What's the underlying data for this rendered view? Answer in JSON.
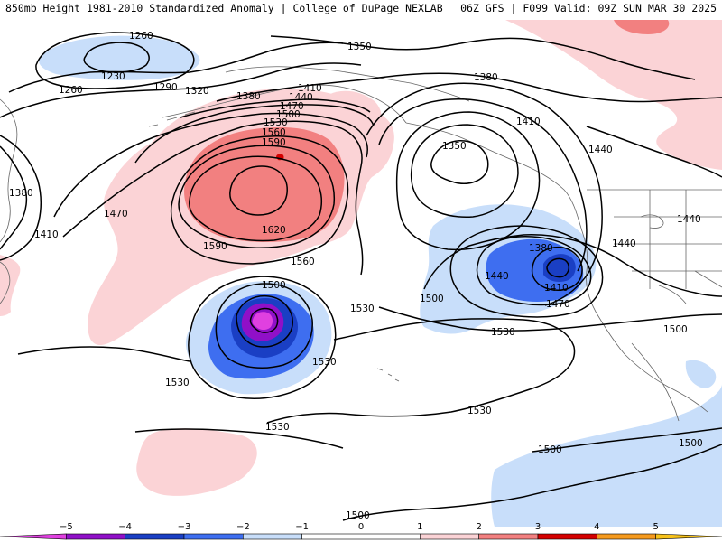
{
  "header": {
    "left_title": "850mb Height 1981-2010 Standardized Anomaly | College of DuPage NEXLAB",
    "right_title": "06Z GFS | F099 Valid: 09Z SUN MAR 30 2025"
  },
  "contour_labels": [
    {
      "id": "h1260a",
      "text": "1260"
    },
    {
      "id": "h1230",
      "text": "1230"
    },
    {
      "id": "h1260b",
      "text": "1260"
    },
    {
      "id": "h1290",
      "text": "1290"
    },
    {
      "id": "h1320",
      "text": "1320"
    },
    {
      "id": "h1350a",
      "text": "1350"
    },
    {
      "id": "h1380a",
      "text": "1380"
    },
    {
      "id": "h1380b",
      "text": "1380"
    },
    {
      "id": "h1410a",
      "text": "1410"
    },
    {
      "id": "h1440a",
      "text": "1440"
    },
    {
      "id": "h1470a",
      "text": "1470"
    },
    {
      "id": "h1500a",
      "text": "1500"
    },
    {
      "id": "h1530a",
      "text": "1530"
    },
    {
      "id": "h1560a",
      "text": "1560"
    },
    {
      "id": "h1590a",
      "text": "1590"
    },
    {
      "id": "h1620",
      "text": "1620"
    },
    {
      "id": "h1590b",
      "text": "1590"
    },
    {
      "id": "h1560b",
      "text": "1560"
    },
    {
      "id": "h1470b",
      "text": "1470"
    },
    {
      "id": "h1380c",
      "text": "1380"
    },
    {
      "id": "h1410b",
      "text": "1410"
    },
    {
      "id": "h1350b",
      "text": "1350"
    },
    {
      "id": "h1410c",
      "text": "1410"
    },
    {
      "id": "h1440b",
      "text": "1440"
    },
    {
      "id": "h1440c",
      "text": "1440"
    },
    {
      "id": "h1440d",
      "text": "1440"
    },
    {
      "id": "h1380d",
      "text": "1380"
    },
    {
      "id": "h1440e",
      "text": "1440"
    },
    {
      "id": "h1410d",
      "text": "1410"
    },
    {
      "id": "h1470c",
      "text": "1470"
    },
    {
      "id": "h1500b",
      "text": "1500"
    },
    {
      "id": "h1500c",
      "text": "1500"
    },
    {
      "id": "h1530b",
      "text": "1530"
    },
    {
      "id": "h1530c",
      "text": "1530"
    },
    {
      "id": "h1530d",
      "text": "1530"
    },
    {
      "id": "h1530e",
      "text": "1530"
    },
    {
      "id": "h1530f",
      "text": "1530"
    },
    {
      "id": "h1530g",
      "text": "1530"
    },
    {
      "id": "h1500d",
      "text": "1500"
    },
    {
      "id": "h1500e",
      "text": "1500"
    },
    {
      "id": "h1500f",
      "text": "1500"
    },
    {
      "id": "h1500g",
      "text": "1500"
    }
  ],
  "colorbar": {
    "min": -6,
    "max": 6,
    "ticks": [
      {
        "value": -5,
        "label": "−5"
      },
      {
        "value": -4,
        "label": "−4"
      },
      {
        "value": -3,
        "label": "−3"
      },
      {
        "value": -2,
        "label": "−2"
      },
      {
        "value": -1,
        "label": "−1"
      },
      {
        "value": 0,
        "label": "0"
      },
      {
        "value": 1,
        "label": "1"
      },
      {
        "value": 2,
        "label": "2"
      },
      {
        "value": 3,
        "label": "3"
      },
      {
        "value": 4,
        "label": "4"
      },
      {
        "value": 5,
        "label": "5"
      }
    ],
    "bands": [
      {
        "from": -6,
        "to": -5,
        "color": "#e040e0"
      },
      {
        "from": -5,
        "to": -4,
        "color": "#9010c8"
      },
      {
        "from": -4,
        "to": -3,
        "color": "#1a3fc4"
      },
      {
        "from": -3,
        "to": -2,
        "color": "#3e6ef0"
      },
      {
        "from": -2,
        "to": -1,
        "color": "#c8defa"
      },
      {
        "from": -1,
        "to": 1,
        "color": "#ffffff"
      },
      {
        "from": 1,
        "to": 2,
        "color": "#fbd3d6"
      },
      {
        "from": 2,
        "to": 3,
        "color": "#f28080"
      },
      {
        "from": 3,
        "to": 4,
        "color": "#d40000"
      },
      {
        "from": 4,
        "to": 5,
        "color": "#f59a1e"
      },
      {
        "from": 5,
        "to": 6,
        "color": "#f7c21a"
      }
    ]
  },
  "colors": {
    "contour": "#000000",
    "coast": "#666666",
    "neg1": "#c8defa",
    "neg2": "#3e6ef0",
    "neg3": "#1a3fc4",
    "neg4": "#9010c8",
    "neg5": "#e040e0",
    "pos1": "#fbd3d6",
    "pos2": "#f28080",
    "pos3": "#d40000"
  }
}
